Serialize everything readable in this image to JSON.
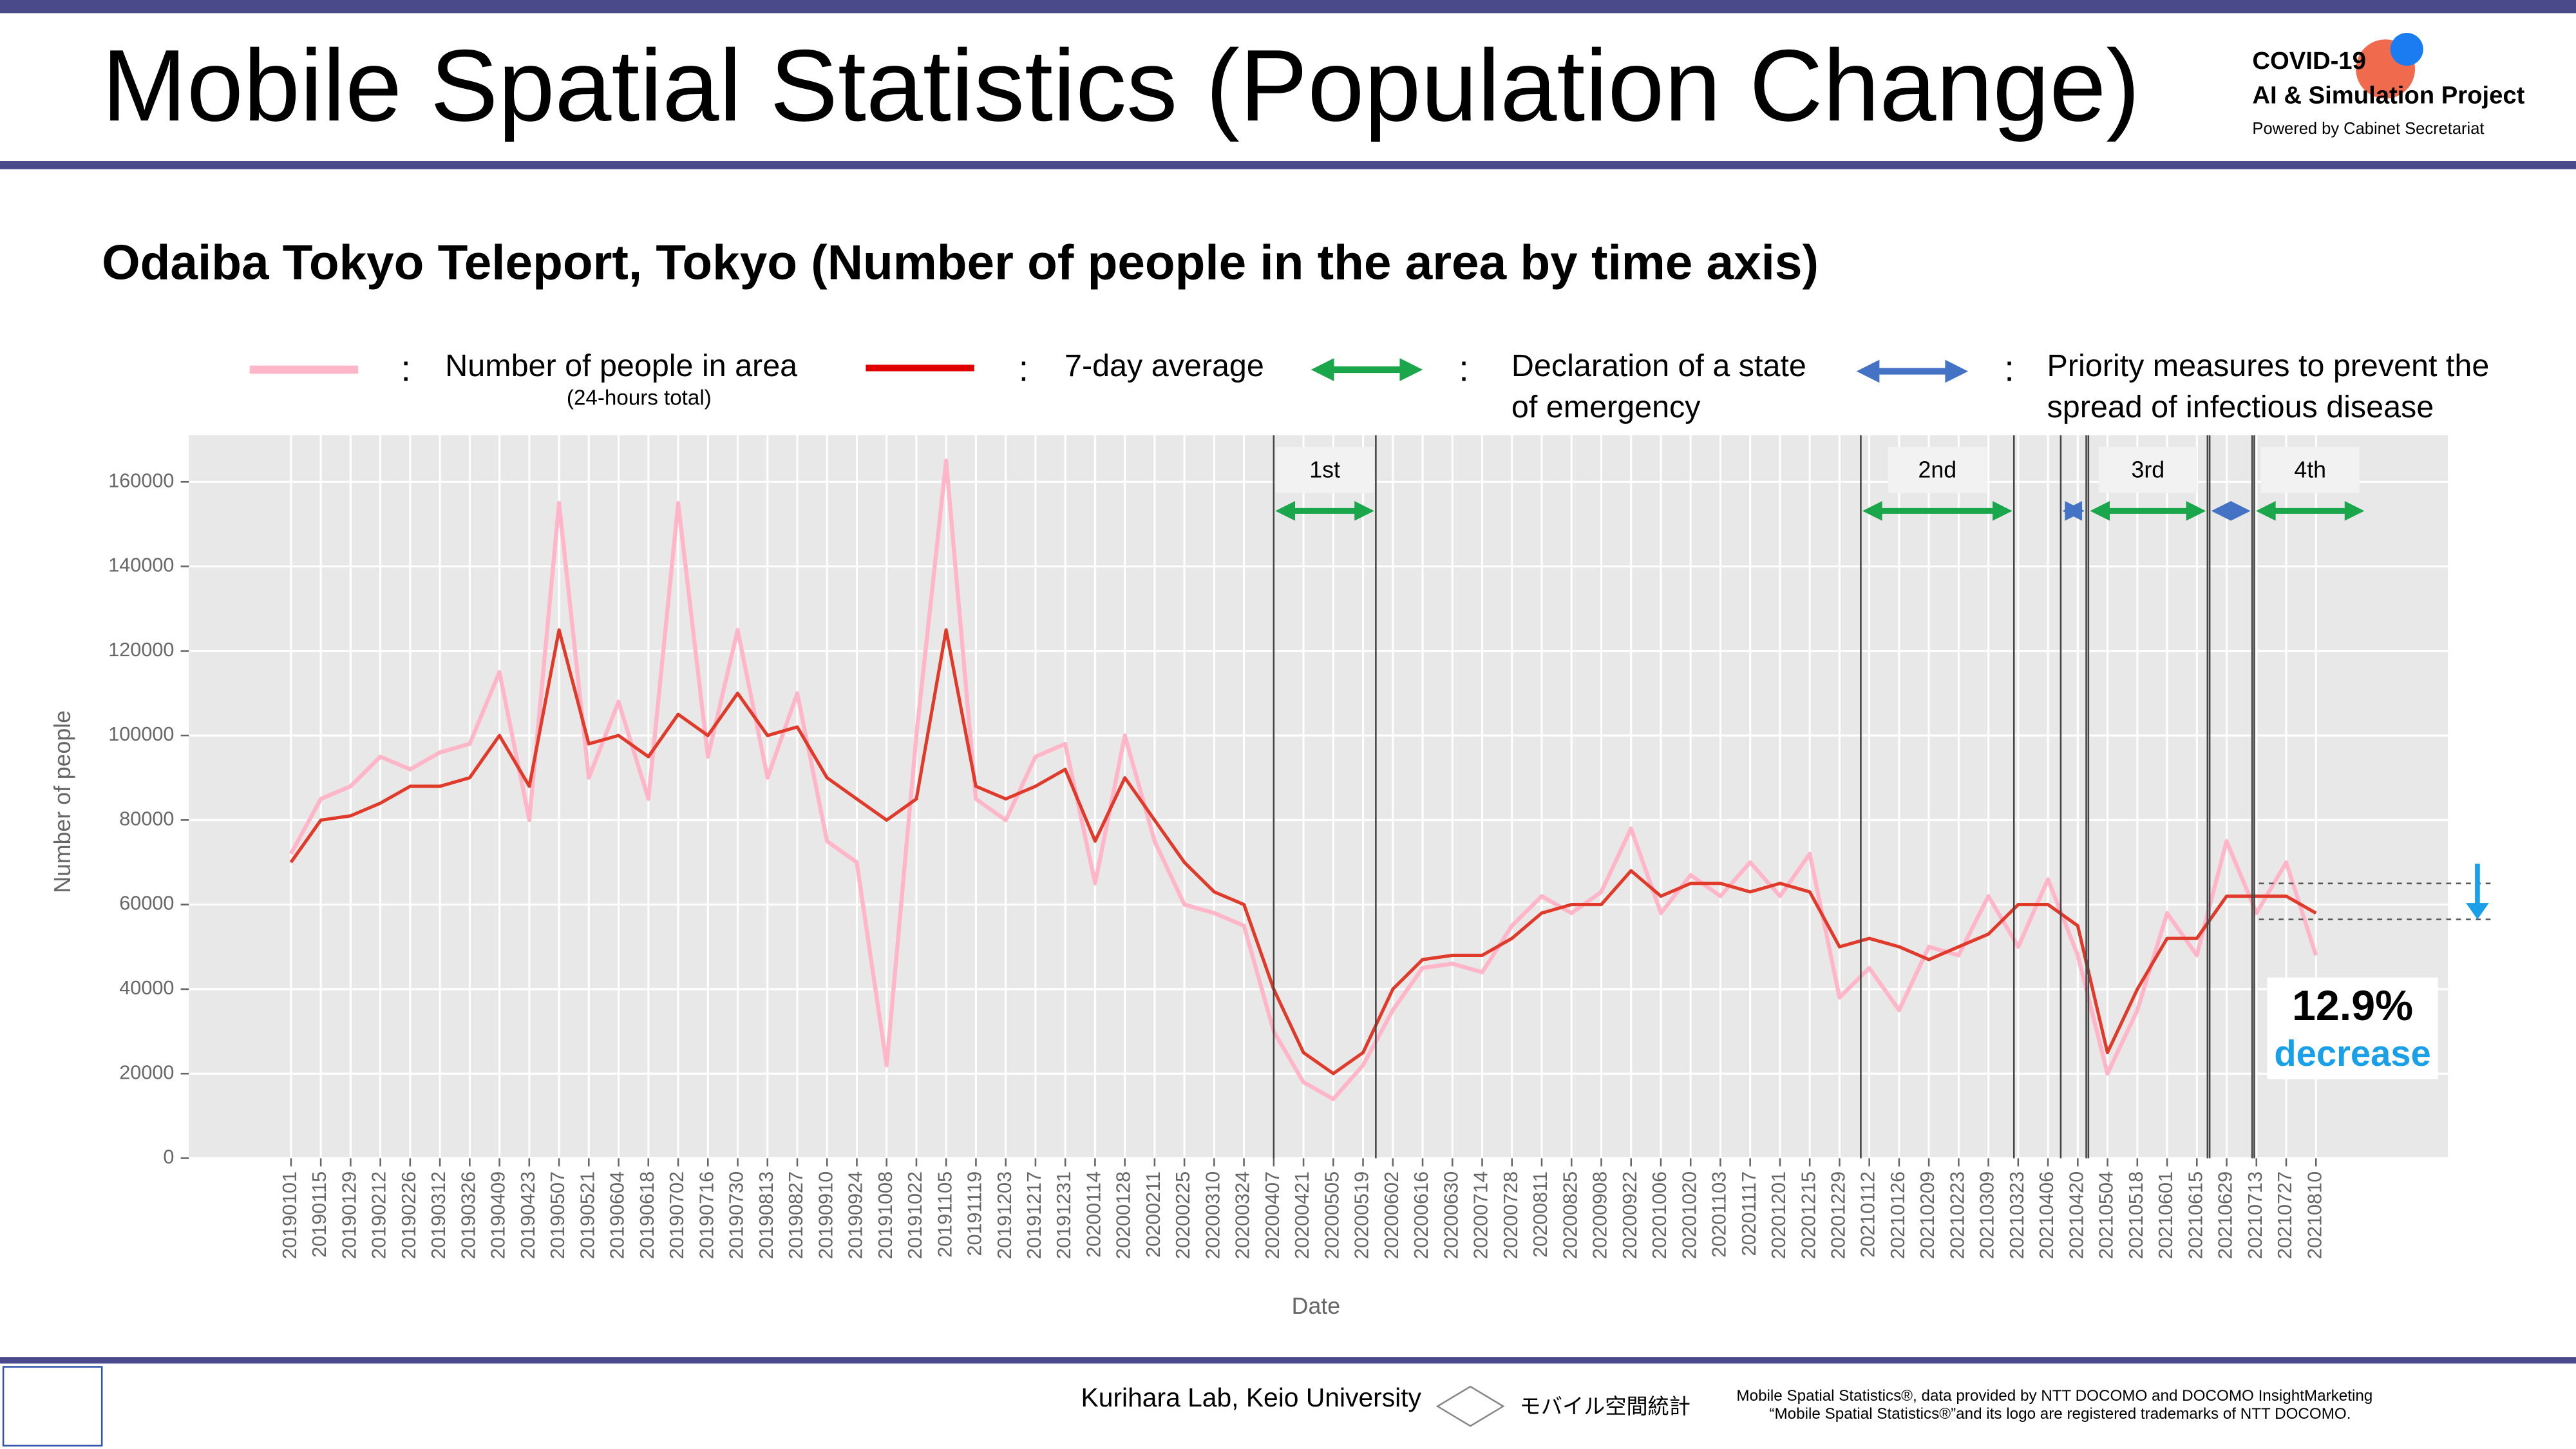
{
  "header": {
    "title": "Mobile Spatial Statistics (Population Change)",
    "logo_line1": "COVID-19",
    "logo_line2": "AI & Simulation Project",
    "logo_line3": "Powered by Cabinet Secretariat"
  },
  "chart_data": {
    "type": "line",
    "title": "Odaiba Tokyo Teleport, Tokyo (Number of people in the area by time axis)",
    "x_label": "Date",
    "y_label": "Number of people",
    "x": [
      "20190101",
      "20190115",
      "20190129",
      "20190212",
      "20190226",
      "20190312",
      "20190326",
      "20190409",
      "20190423",
      "20190507",
      "20190521",
      "20190604",
      "20190618",
      "20190702",
      "20190716",
      "20190730",
      "20190813",
      "20190827",
      "20190910",
      "20190924",
      "20191008",
      "20191022",
      "20191105",
      "20191119",
      "20191203",
      "20191217",
      "20191231",
      "20200114",
      "20200128",
      "20200211",
      "20200225",
      "20200310",
      "20200324",
      "20200407",
      "20200421",
      "20200505",
      "20200519",
      "20200602",
      "20200616",
      "20200630",
      "20200714",
      "20200728",
      "20200811",
      "20200825",
      "20200908",
      "20200922",
      "20201006",
      "20201020",
      "20201103",
      "20201117",
      "20201201",
      "20201215",
      "20201229",
      "20210112",
      "20210126",
      "20210209",
      "20210223",
      "20210309",
      "20210323",
      "20210406",
      "20210420",
      "20210504",
      "20210518",
      "20210601",
      "20210615",
      "20210629",
      "20210713",
      "20210727",
      "20210810"
    ],
    "xlim": [
      "20181114",
      "20211011"
    ],
    "ylim": [
      0,
      171000
    ],
    "yticks": [
      0,
      20000,
      40000,
      60000,
      80000,
      100000,
      120000,
      140000,
      160000
    ],
    "grid": true,
    "series": [
      {
        "name": "Number of people in area",
        "sublabel": "(24-hours total)",
        "color": "#ffb6c8",
        "values": [
          72000,
          85000,
          88000,
          95000,
          92000,
          96000,
          98000,
          115000,
          80000,
          155000,
          90000,
          108000,
          85000,
          155000,
          95000,
          125000,
          90000,
          110000,
          75000,
          70000,
          22000,
          100000,
          165000,
          85000,
          80000,
          95000,
          98000,
          65000,
          100000,
          75000,
          60000,
          58000,
          55000,
          30000,
          18000,
          14000,
          22000,
          35000,
          45000,
          46000,
          44000,
          55000,
          62000,
          58000,
          63000,
          78000,
          58000,
          67000,
          62000,
          70000,
          62000,
          72000,
          38000,
          45000,
          35000,
          50000,
          48000,
          62000,
          50000,
          66000,
          48000,
          20000,
          35000,
          58000,
          48000,
          75000,
          58000,
          70000,
          48000
        ]
      },
      {
        "name": "7-day average",
        "color": "#e03a2a",
        "values": [
          70000,
          80000,
          81000,
          84000,
          88000,
          88000,
          90000,
          100000,
          88000,
          125000,
          98000,
          100000,
          95000,
          105000,
          100000,
          110000,
          100000,
          102000,
          90000,
          85000,
          80000,
          85000,
          125000,
          88000,
          85000,
          88000,
          92000,
          75000,
          90000,
          80000,
          70000,
          63000,
          60000,
          40000,
          25000,
          20000,
          25000,
          40000,
          47000,
          48000,
          48000,
          52000,
          58000,
          60000,
          60000,
          68000,
          62000,
          65000,
          65000,
          63000,
          65000,
          63000,
          50000,
          52000,
          50000,
          47000,
          50000,
          53000,
          60000,
          60000,
          55000,
          25000,
          40000,
          52000,
          52000,
          62000,
          62000,
          62000,
          58000
        ]
      }
    ],
    "periods": [
      {
        "kind": "emergency",
        "label": "1st",
        "start": "20200407",
        "end": "20200525"
      },
      {
        "kind": "emergency",
        "label": "2nd",
        "start": "20210108",
        "end": "20210321"
      },
      {
        "kind": "priority",
        "start": "20210412",
        "end": "20210424"
      },
      {
        "kind": "emergency",
        "label": "3rd",
        "start": "20210425",
        "end": "20210620"
      },
      {
        "kind": "priority",
        "start": "20210621",
        "end": "20210711"
      },
      {
        "kind": "emergency",
        "label": "4th",
        "start": "20210712"
      }
    ],
    "legend": {
      "separator": ":",
      "emergency": "Declaration of a state",
      "emergency2": "of emergency",
      "priority": "Priority measures to prevent the",
      "priority2": "spread of infectious disease",
      "emergency_color": "#1aa64a",
      "priority_color": "#4472c4"
    },
    "change": {
      "value": "12.9%",
      "label": "decrease",
      "levels": [
        65000,
        56500
      ]
    }
  },
  "footer": {
    "lab": "Kurihara Lab, Keio University",
    "brand": "モバイル空間統計",
    "credit1": "Mobile Spatial Statistics®, data provided by NTT DOCOMO and DOCOMO InsightMarketing",
    "credit2": "“Mobile Spatial Statistics®”and its logo are registered trademarks of NTT DOCOMO."
  }
}
